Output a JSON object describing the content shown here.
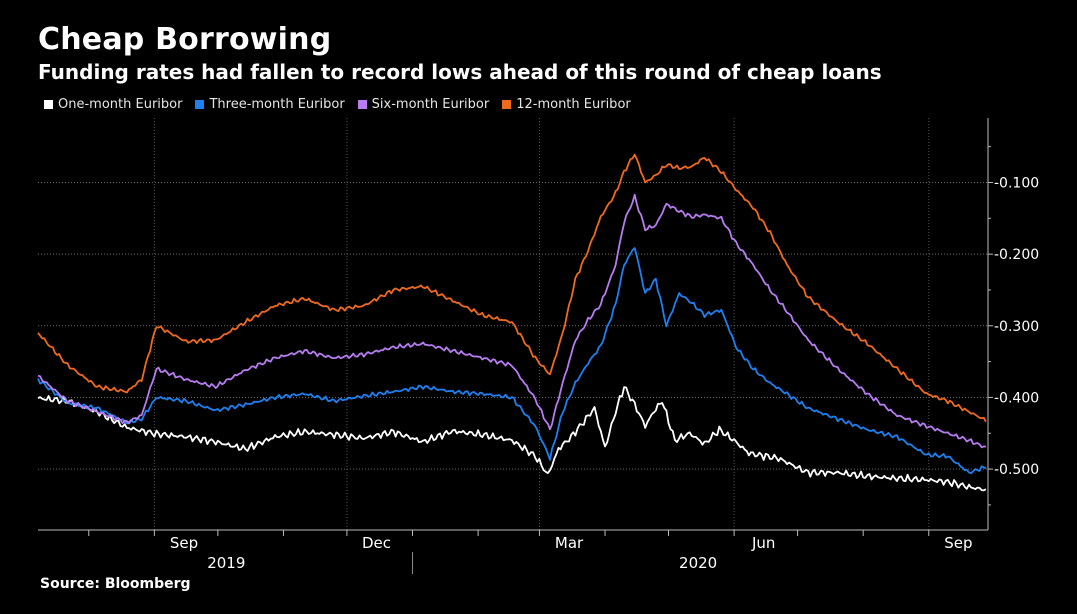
{
  "title": "Cheap Borrowing",
  "subtitle": "Funding rates had fallen to record lows ahead of this round of cheap loans",
  "source": "Source: Bloomberg",
  "legend": [
    {
      "label": "One-month Euribor",
      "color": "#ffffff"
    },
    {
      "label": "Three-month Euribor",
      "color": "#1e80f0"
    },
    {
      "label": "Six-month Euribor",
      "color": "#b67cf0"
    },
    {
      "label": "12-month Euribor",
      "color": "#f06a1e"
    }
  ],
  "chart_data": {
    "type": "line",
    "y_ticks": [
      -0.1,
      -0.2,
      -0.3,
      -0.4,
      -0.5
    ],
    "y_tick_labels": [
      "-0.100",
      "-0.200",
      "-0.300",
      "-0.400",
      "-0.500"
    ],
    "ylim": [
      -0.585,
      -0.01
    ],
    "grid": true,
    "legend_position": "top-left",
    "month_labels": [
      "Sep",
      "Dec",
      "Mar",
      "Jun",
      "Sep"
    ],
    "year_labels": [
      "2019",
      "2020"
    ],
    "xlim": [
      "2019-07-08",
      "2020-09-29"
    ],
    "series": [
      {
        "name": "One-month Euribor",
        "color": "#ffffff",
        "points": [
          [
            "2019-07-08",
            -0.401
          ],
          [
            "2019-07-22",
            -0.405
          ],
          [
            "2019-08-05",
            -0.42
          ],
          [
            "2019-08-19",
            -0.442
          ],
          [
            "2019-09-02",
            -0.451
          ],
          [
            "2019-09-16",
            -0.455
          ],
          [
            "2019-09-30",
            -0.462
          ],
          [
            "2019-10-14",
            -0.472
          ],
          [
            "2019-10-28",
            -0.455
          ],
          [
            "2019-11-11",
            -0.448
          ],
          [
            "2019-11-25",
            -0.452
          ],
          [
            "2019-12-09",
            -0.457
          ],
          [
            "2019-12-23",
            -0.448
          ],
          [
            "2020-01-06",
            -0.462
          ],
          [
            "2020-01-20",
            -0.447
          ],
          [
            "2020-02-03",
            -0.452
          ],
          [
            "2020-02-17",
            -0.46
          ],
          [
            "2020-02-28",
            -0.482
          ],
          [
            "2020-03-05",
            -0.508
          ],
          [
            "2020-03-10",
            -0.472
          ],
          [
            "2020-03-16",
            -0.455
          ],
          [
            "2020-03-23",
            -0.43
          ],
          [
            "2020-03-27",
            -0.415
          ],
          [
            "2020-04-01",
            -0.47
          ],
          [
            "2020-04-06",
            -0.42
          ],
          [
            "2020-04-10",
            -0.385
          ],
          [
            "2020-04-15",
            -0.41
          ],
          [
            "2020-04-20",
            -0.44
          ],
          [
            "2020-04-24",
            -0.42
          ],
          [
            "2020-04-28",
            -0.405
          ],
          [
            "2020-05-04",
            -0.46
          ],
          [
            "2020-05-11",
            -0.45
          ],
          [
            "2020-05-18",
            -0.465
          ],
          [
            "2020-05-25",
            -0.445
          ],
          [
            "2020-06-01",
            -0.46
          ],
          [
            "2020-06-08",
            -0.478
          ],
          [
            "2020-06-22",
            -0.485
          ],
          [
            "2020-07-06",
            -0.505
          ],
          [
            "2020-07-20",
            -0.505
          ],
          [
            "2020-08-03",
            -0.51
          ],
          [
            "2020-08-17",
            -0.513
          ],
          [
            "2020-08-31",
            -0.515
          ],
          [
            "2020-09-10",
            -0.518
          ],
          [
            "2020-09-20",
            -0.525
          ],
          [
            "2020-09-28",
            -0.529
          ]
        ]
      },
      {
        "name": "Three-month Euribor",
        "color": "#1e80f0",
        "points": [
          [
            "2019-07-08",
            -0.375
          ],
          [
            "2019-07-22",
            -0.408
          ],
          [
            "2019-08-05",
            -0.415
          ],
          [
            "2019-08-19",
            -0.435
          ],
          [
            "2019-08-26",
            -0.43
          ],
          [
            "2019-09-02",
            -0.4
          ],
          [
            "2019-09-16",
            -0.405
          ],
          [
            "2019-09-30",
            -0.418
          ],
          [
            "2019-10-14",
            -0.41
          ],
          [
            "2019-10-28",
            -0.4
          ],
          [
            "2019-11-11",
            -0.395
          ],
          [
            "2019-11-25",
            -0.405
          ],
          [
            "2019-12-09",
            -0.398
          ],
          [
            "2019-12-23",
            -0.392
          ],
          [
            "2020-01-06",
            -0.385
          ],
          [
            "2020-01-20",
            -0.392
          ],
          [
            "2020-02-03",
            -0.395
          ],
          [
            "2020-02-17",
            -0.4
          ],
          [
            "2020-02-28",
            -0.44
          ],
          [
            "2020-03-06",
            -0.485
          ],
          [
            "2020-03-12",
            -0.42
          ],
          [
            "2020-03-18",
            -0.38
          ],
          [
            "2020-03-24",
            -0.352
          ],
          [
            "2020-03-30",
            -0.328
          ],
          [
            "2020-04-06",
            -0.27
          ],
          [
            "2020-04-10",
            -0.215
          ],
          [
            "2020-04-15",
            -0.19
          ],
          [
            "2020-04-20",
            -0.255
          ],
          [
            "2020-04-25",
            -0.235
          ],
          [
            "2020-04-30",
            -0.3
          ],
          [
            "2020-05-06",
            -0.255
          ],
          [
            "2020-05-12",
            -0.268
          ],
          [
            "2020-05-18",
            -0.285
          ],
          [
            "2020-05-26",
            -0.278
          ],
          [
            "2020-06-02",
            -0.33
          ],
          [
            "2020-06-10",
            -0.36
          ],
          [
            "2020-06-18",
            -0.38
          ],
          [
            "2020-06-26",
            -0.395
          ],
          [
            "2020-07-06",
            -0.415
          ],
          [
            "2020-07-20",
            -0.43
          ],
          [
            "2020-08-03",
            -0.445
          ],
          [
            "2020-08-17",
            -0.455
          ],
          [
            "2020-08-31",
            -0.48
          ],
          [
            "2020-09-10",
            -0.482
          ],
          [
            "2020-09-20",
            -0.505
          ],
          [
            "2020-09-28",
            -0.497
          ]
        ]
      },
      {
        "name": "Six-month Euribor",
        "color": "#b67cf0",
        "points": [
          [
            "2019-07-08",
            -0.37
          ],
          [
            "2019-07-22",
            -0.405
          ],
          [
            "2019-08-05",
            -0.42
          ],
          [
            "2019-08-19",
            -0.435
          ],
          [
            "2019-08-26",
            -0.425
          ],
          [
            "2019-09-02",
            -0.36
          ],
          [
            "2019-09-16",
            -0.375
          ],
          [
            "2019-09-30",
            -0.385
          ],
          [
            "2019-10-14",
            -0.362
          ],
          [
            "2019-10-28",
            -0.345
          ],
          [
            "2019-11-11",
            -0.335
          ],
          [
            "2019-11-25",
            -0.345
          ],
          [
            "2019-12-09",
            -0.34
          ],
          [
            "2019-12-23",
            -0.33
          ],
          [
            "2020-01-06",
            -0.325
          ],
          [
            "2020-01-20",
            -0.335
          ],
          [
            "2020-02-03",
            -0.345
          ],
          [
            "2020-02-17",
            -0.355
          ],
          [
            "2020-02-28",
            -0.402
          ],
          [
            "2020-03-06",
            -0.445
          ],
          [
            "2020-03-12",
            -0.38
          ],
          [
            "2020-03-18",
            -0.32
          ],
          [
            "2020-03-24",
            -0.292
          ],
          [
            "2020-03-30",
            -0.27
          ],
          [
            "2020-04-06",
            -0.215
          ],
          [
            "2020-04-10",
            -0.155
          ],
          [
            "2020-04-15",
            -0.12
          ],
          [
            "2020-04-20",
            -0.165
          ],
          [
            "2020-04-25",
            -0.16
          ],
          [
            "2020-04-30",
            -0.13
          ],
          [
            "2020-05-06",
            -0.14
          ],
          [
            "2020-05-12",
            -0.148
          ],
          [
            "2020-05-18",
            -0.145
          ],
          [
            "2020-05-26",
            -0.15
          ],
          [
            "2020-06-02",
            -0.185
          ],
          [
            "2020-06-10",
            -0.215
          ],
          [
            "2020-06-18",
            -0.25
          ],
          [
            "2020-06-26",
            -0.28
          ],
          [
            "2020-07-06",
            -0.32
          ],
          [
            "2020-07-20",
            -0.36
          ],
          [
            "2020-08-03",
            -0.395
          ],
          [
            "2020-08-17",
            -0.425
          ],
          [
            "2020-08-31",
            -0.44
          ],
          [
            "2020-09-10",
            -0.45
          ],
          [
            "2020-09-20",
            -0.46
          ],
          [
            "2020-09-28",
            -0.47
          ]
        ]
      },
      {
        "name": "12-month Euribor",
        "color": "#f06a1e",
        "points": [
          [
            "2019-07-08",
            -0.31
          ],
          [
            "2019-07-22",
            -0.355
          ],
          [
            "2019-08-05",
            -0.385
          ],
          [
            "2019-08-19",
            -0.392
          ],
          [
            "2019-08-26",
            -0.375
          ],
          [
            "2019-09-02",
            -0.3
          ],
          [
            "2019-09-16",
            -0.322
          ],
          [
            "2019-09-30",
            -0.32
          ],
          [
            "2019-10-14",
            -0.295
          ],
          [
            "2019-10-28",
            -0.272
          ],
          [
            "2019-11-11",
            -0.262
          ],
          [
            "2019-11-25",
            -0.278
          ],
          [
            "2019-12-09",
            -0.272
          ],
          [
            "2019-12-23",
            -0.25
          ],
          [
            "2020-01-06",
            -0.245
          ],
          [
            "2020-01-20",
            -0.265
          ],
          [
            "2020-02-03",
            -0.285
          ],
          [
            "2020-02-17",
            -0.295
          ],
          [
            "2020-02-28",
            -0.345
          ],
          [
            "2020-03-06",
            -0.368
          ],
          [
            "2020-03-12",
            -0.31
          ],
          [
            "2020-03-18",
            -0.235
          ],
          [
            "2020-03-24",
            -0.195
          ],
          [
            "2020-03-30",
            -0.148
          ],
          [
            "2020-04-06",
            -0.115
          ],
          [
            "2020-04-10",
            -0.085
          ],
          [
            "2020-04-15",
            -0.06
          ],
          [
            "2020-04-20",
            -0.1
          ],
          [
            "2020-04-25",
            -0.09
          ],
          [
            "2020-04-30",
            -0.075
          ],
          [
            "2020-05-06",
            -0.08
          ],
          [
            "2020-05-12",
            -0.078
          ],
          [
            "2020-05-18",
            -0.065
          ],
          [
            "2020-05-26",
            -0.085
          ],
          [
            "2020-06-02",
            -0.11
          ],
          [
            "2020-06-10",
            -0.135
          ],
          [
            "2020-06-18",
            -0.17
          ],
          [
            "2020-06-26",
            -0.215
          ],
          [
            "2020-07-06",
            -0.26
          ],
          [
            "2020-07-20",
            -0.295
          ],
          [
            "2020-08-03",
            -0.325
          ],
          [
            "2020-08-17",
            -0.36
          ],
          [
            "2020-08-31",
            -0.395
          ],
          [
            "2020-09-10",
            -0.405
          ],
          [
            "2020-09-20",
            -0.42
          ],
          [
            "2020-09-28",
            -0.432
          ]
        ]
      }
    ]
  }
}
